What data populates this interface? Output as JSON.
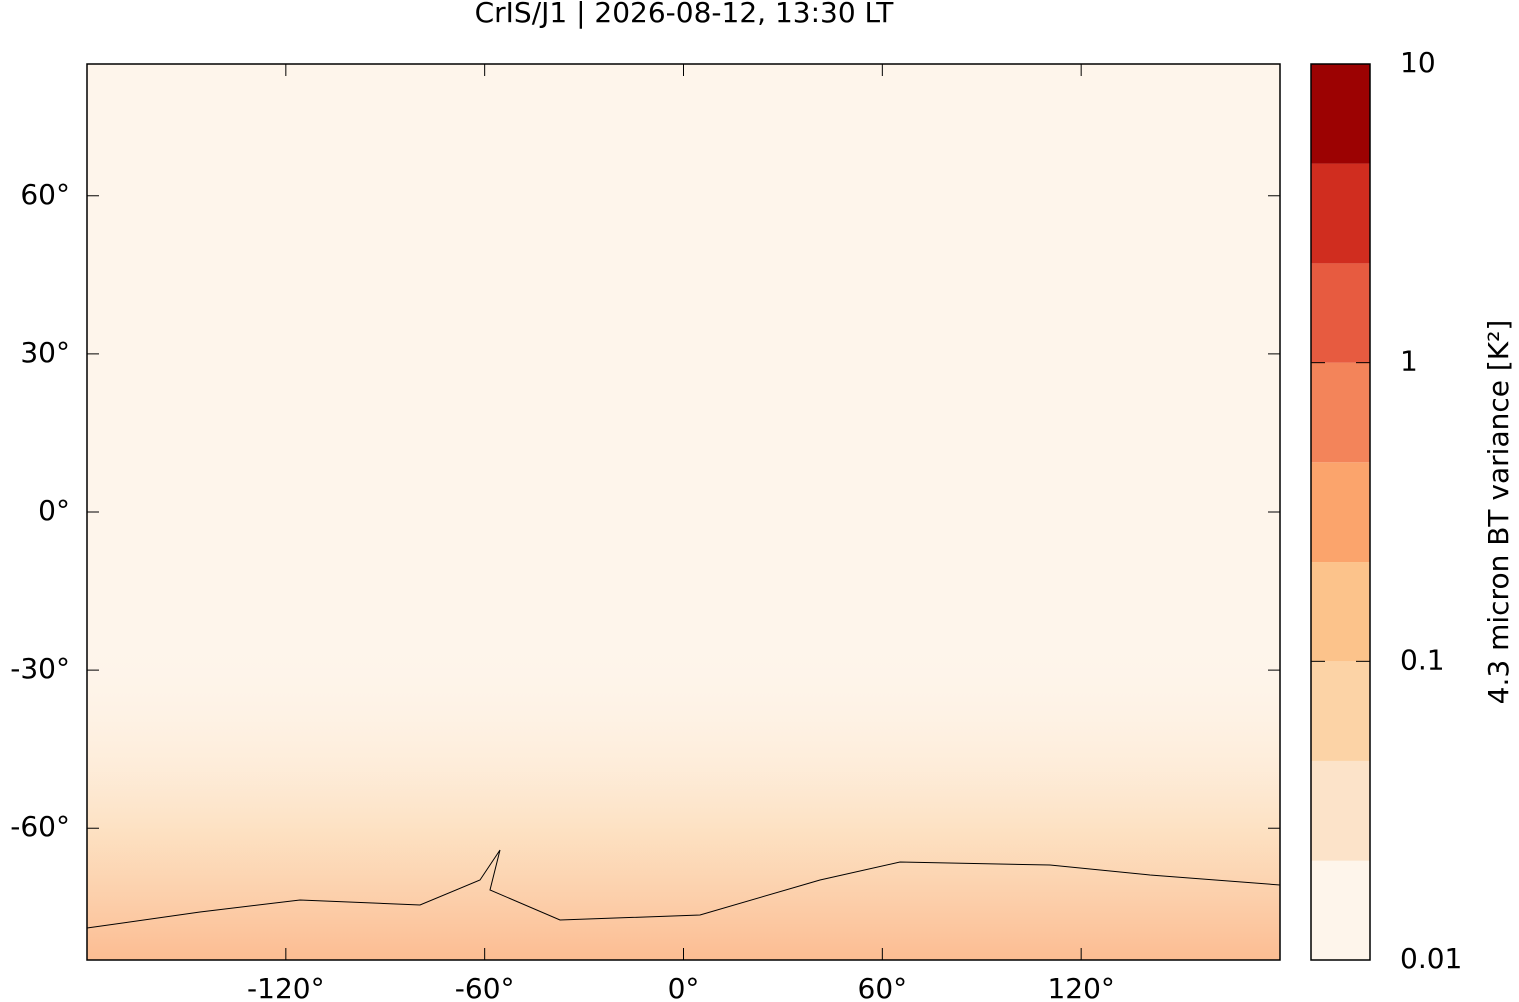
{
  "chart_data": {
    "type": "map",
    "title": "CrIS/J1 | 2026-08-12, 13:30 LT",
    "xlim": [
      -180,
      180
    ],
    "ylim": [
      -85,
      85
    ],
    "xticks": [
      {
        "value": -120,
        "label": "-120°"
      },
      {
        "value": -60,
        "label": "-60°"
      },
      {
        "value": 0,
        "label": "0°"
      },
      {
        "value": 60,
        "label": "60°"
      },
      {
        "value": 120,
        "label": "120°"
      }
    ],
    "yticks": [
      {
        "value": 60,
        "label": "60°"
      },
      {
        "value": 30,
        "label": "30°"
      },
      {
        "value": 0,
        "label": "0°"
      },
      {
        "value": -30,
        "label": "-30°"
      },
      {
        "value": -60,
        "label": "-60°"
      }
    ],
    "colorbar": {
      "label": "4.3 micron BT variance [K²]",
      "log_scale": true,
      "lim": [
        0.01,
        10
      ],
      "ticks": [
        0.01,
        0.1,
        1,
        10
      ],
      "levels": [
        0.01,
        0.0215,
        0.0464,
        0.1,
        0.215,
        0.464,
        1,
        2.15,
        4.64,
        10
      ],
      "colors": [
        "#fef5eb",
        "#fce3c9",
        "#fcd3a6",
        "#fcc38b",
        "#fba46c",
        "#f3845a",
        "#e75b40",
        "#d02d1f",
        "#9c0202"
      ]
    }
  }
}
